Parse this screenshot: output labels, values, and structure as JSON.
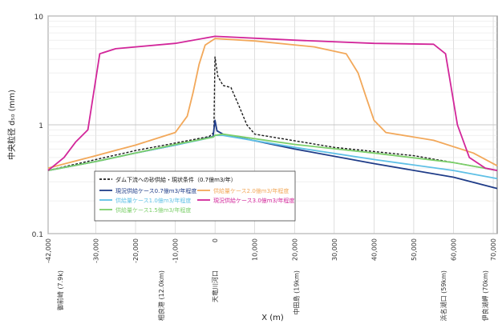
{
  "chart_data": {
    "type": "line",
    "xlabel": "X (m)",
    "ylabel": "中央粒径 d₅₀ (mm)",
    "xlim": [
      -42000,
      71000
    ],
    "ylim": [
      0.1,
      10
    ],
    "y_scale": "log",
    "grid": true,
    "x_ticks": [
      {
        "value": -42000,
        "label": "-42,000"
      },
      {
        "value": -30000,
        "label": "-30,000"
      },
      {
        "value": -20000,
        "label": "-20,000"
      },
      {
        "value": -10000,
        "label": "-10,000"
      },
      {
        "value": 0,
        "label": "0"
      },
      {
        "value": 10000,
        "label": "10,000"
      },
      {
        "value": 20000,
        "label": "20,000"
      },
      {
        "value": 30000,
        "label": "30,000"
      },
      {
        "value": 40000,
        "label": "40,000"
      },
      {
        "value": 50000,
        "label": "50,000"
      },
      {
        "value": 60000,
        "label": "60,000"
      },
      {
        "value": 70000,
        "label": "70,000"
      }
    ],
    "y_ticks": [
      {
        "value": 0.1,
        "label": "0.1"
      },
      {
        "value": 1,
        "label": "1"
      },
      {
        "value": 10,
        "label": "10"
      }
    ],
    "place_labels": [
      {
        "x": -39000,
        "label": "御前崎 (7.9k)"
      },
      {
        "x": -13500,
        "label": "相良港 (12.0km)"
      },
      {
        "x": 0,
        "label": "天竜川河口"
      },
      {
        "x": 20500,
        "label": "中田島 (19km)"
      },
      {
        "x": 57500,
        "label": "浜名湖口 (59km)"
      },
      {
        "x": 68000,
        "label": "伊良湖岬 (70km)"
      }
    ],
    "series": [
      {
        "name": "ダム下流への砂供給・現状条件",
        "color": "#1a1a1a",
        "dash": "dashed",
        "points": [
          [
            -42000,
            0.38
          ],
          [
            -30000,
            0.48
          ],
          [
            -20000,
            0.58
          ],
          [
            -10000,
            0.68
          ],
          [
            -1500,
            0.78
          ],
          [
            -300,
            0.85
          ],
          [
            0,
            4.2
          ],
          [
            700,
            2.8
          ],
          [
            2000,
            2.3
          ],
          [
            4000,
            2.2
          ],
          [
            6000,
            1.5
          ],
          [
            8000,
            1.0
          ],
          [
            10000,
            0.82
          ],
          [
            30000,
            0.62
          ],
          [
            50000,
            0.52
          ],
          [
            60000,
            0.45
          ],
          [
            71000,
            0.38
          ]
        ]
      },
      {
        "name": "",
        "color": "#1f3c88",
        "dash": "solid",
        "points": [
          [
            -42000,
            0.38
          ],
          [
            -30000,
            0.46
          ],
          [
            -20000,
            0.55
          ],
          [
            -10000,
            0.65
          ],
          [
            -500,
            0.78
          ],
          [
            0,
            1.1
          ],
          [
            500,
            0.88
          ],
          [
            2000,
            0.82
          ],
          [
            20000,
            0.6
          ],
          [
            40000,
            0.44
          ],
          [
            60000,
            0.33
          ],
          [
            71000,
            0.26
          ]
        ]
      },
      {
        "name": "",
        "color": "#5fc0e6",
        "dash": "solid",
        "points": [
          [
            -42000,
            0.38
          ],
          [
            -30000,
            0.46
          ],
          [
            -20000,
            0.55
          ],
          [
            -10000,
            0.65
          ],
          [
            -500,
            0.77
          ],
          [
            0,
            0.8
          ],
          [
            2000,
            0.8
          ],
          [
            20000,
            0.62
          ],
          [
            40000,
            0.48
          ],
          [
            60000,
            0.38
          ],
          [
            71000,
            0.32
          ]
        ]
      },
      {
        "name": "",
        "color": "#7ccf6a",
        "dash": "solid",
        "points": [
          [
            -42000,
            0.38
          ],
          [
            -30000,
            0.46
          ],
          [
            -20000,
            0.55
          ],
          [
            -10000,
            0.66
          ],
          [
            -500,
            0.77
          ],
          [
            0,
            0.8
          ],
          [
            2000,
            0.82
          ],
          [
            20000,
            0.66
          ],
          [
            40000,
            0.55
          ],
          [
            60000,
            0.45
          ],
          [
            71000,
            0.38
          ]
        ]
      },
      {
        "name": "",
        "color": "#f2a85a",
        "dash": "solid",
        "points": [
          [
            -42000,
            0.4
          ],
          [
            -30000,
            0.52
          ],
          [
            -20000,
            0.65
          ],
          [
            -10000,
            0.85
          ],
          [
            -7000,
            1.2
          ],
          [
            -5500,
            2.0
          ],
          [
            -4000,
            3.6
          ],
          [
            -2500,
            5.4
          ],
          [
            0,
            6.2
          ],
          [
            10000,
            5.9
          ],
          [
            25000,
            5.2
          ],
          [
            33000,
            4.5
          ],
          [
            36000,
            3.0
          ],
          [
            38000,
            1.8
          ],
          [
            40000,
            1.1
          ],
          [
            43000,
            0.85
          ],
          [
            55000,
            0.72
          ],
          [
            65000,
            0.55
          ],
          [
            71000,
            0.42
          ]
        ]
      },
      {
        "name": "",
        "color": "#d2269a",
        "dash": "solid",
        "points": [
          [
            -42000,
            0.38
          ],
          [
            -38000,
            0.5
          ],
          [
            -35000,
            0.7
          ],
          [
            -32000,
            0.9
          ],
          [
            -29000,
            4.5
          ],
          [
            -25000,
            5.0
          ],
          [
            -10000,
            5.6
          ],
          [
            0,
            6.5
          ],
          [
            20000,
            6.0
          ],
          [
            40000,
            5.6
          ],
          [
            55000,
            5.5
          ],
          [
            58000,
            4.5
          ],
          [
            61000,
            1.0
          ],
          [
            64000,
            0.5
          ],
          [
            68000,
            0.4
          ],
          [
            71000,
            0.38
          ]
        ]
      }
    ],
    "legend": {
      "placement": "lower-center",
      "entries": [
        {
          "label": "ダム下流への砂供給・現状条件（0.7億m3/年）",
          "color": "#1a1a1a",
          "dash": "dashed"
        },
        {
          "label": "現況供給ケース0.7億m3/年程度",
          "color": "#1f3c88",
          "dash": "solid"
        },
        {
          "label": "供給量ケース1.0億m3/年程度",
          "color": "#5fc0e6",
          "dash": "solid"
        },
        {
          "label": "供給量ケース1.5億m3/年程度",
          "color": "#7ccf6a",
          "dash": "solid"
        },
        {
          "label": "供給量ケース2.0億m3/年程度",
          "color": "#f2a85a",
          "dash": "solid"
        },
        {
          "label": "現況供給ケース3.0億m3/年程度",
          "color": "#d2269a",
          "dash": "solid"
        }
      ]
    }
  }
}
